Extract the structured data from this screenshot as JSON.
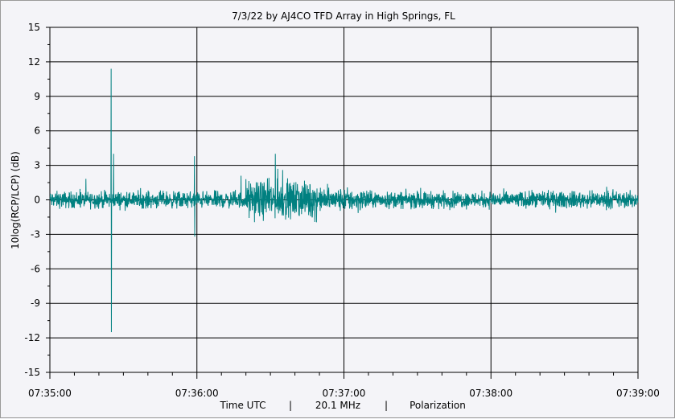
{
  "chart_data": {
    "type": "line",
    "title": "7/3/22  by  AJ4CO TFD Array  in  High Springs, FL",
    "ylabel": "10log(RCP/LCP) (dB)",
    "xlabel_parts": [
      "Time UTC",
      "|",
      "20.1 MHz",
      "|",
      "Polarization"
    ],
    "ylim": [
      -15,
      15
    ],
    "xlim": [
      "07:35:00",
      "07:39:00"
    ],
    "y_ticks": [
      "15",
      "12",
      "9",
      "6",
      "3",
      "0",
      "-3",
      "-6",
      "-9",
      "-12",
      "-15"
    ],
    "x_ticks": [
      "07:35:00",
      "07:36:00",
      "07:37:00",
      "07:38:00",
      "07:39:00"
    ],
    "grid": true,
    "series": [
      {
        "color": "#008080",
        "baseline_db": 0,
        "noise_amplitude_db": 0.7,
        "events": [
          {
            "time": "07:35:25",
            "max": 11.4,
            "min": -11.5
          },
          {
            "time": "07:35:26",
            "max": 4.0,
            "min": -0.5
          },
          {
            "time": "07:35:59",
            "max": 3.8,
            "min": -3.2
          },
          {
            "time": "07:36:18",
            "max": 2.1,
            "min": -0.3
          },
          {
            "time": "07:36:20",
            "max": 1.8,
            "min": -0.4
          },
          {
            "time": "07:36:32",
            "max": 4.0,
            "min": -0.5
          },
          {
            "time": "07:36:33",
            "max": 2.7,
            "min": -0.3
          },
          {
            "time": "07:36:35",
            "max": 2.6,
            "min": -0.3
          }
        ]
      }
    ]
  }
}
